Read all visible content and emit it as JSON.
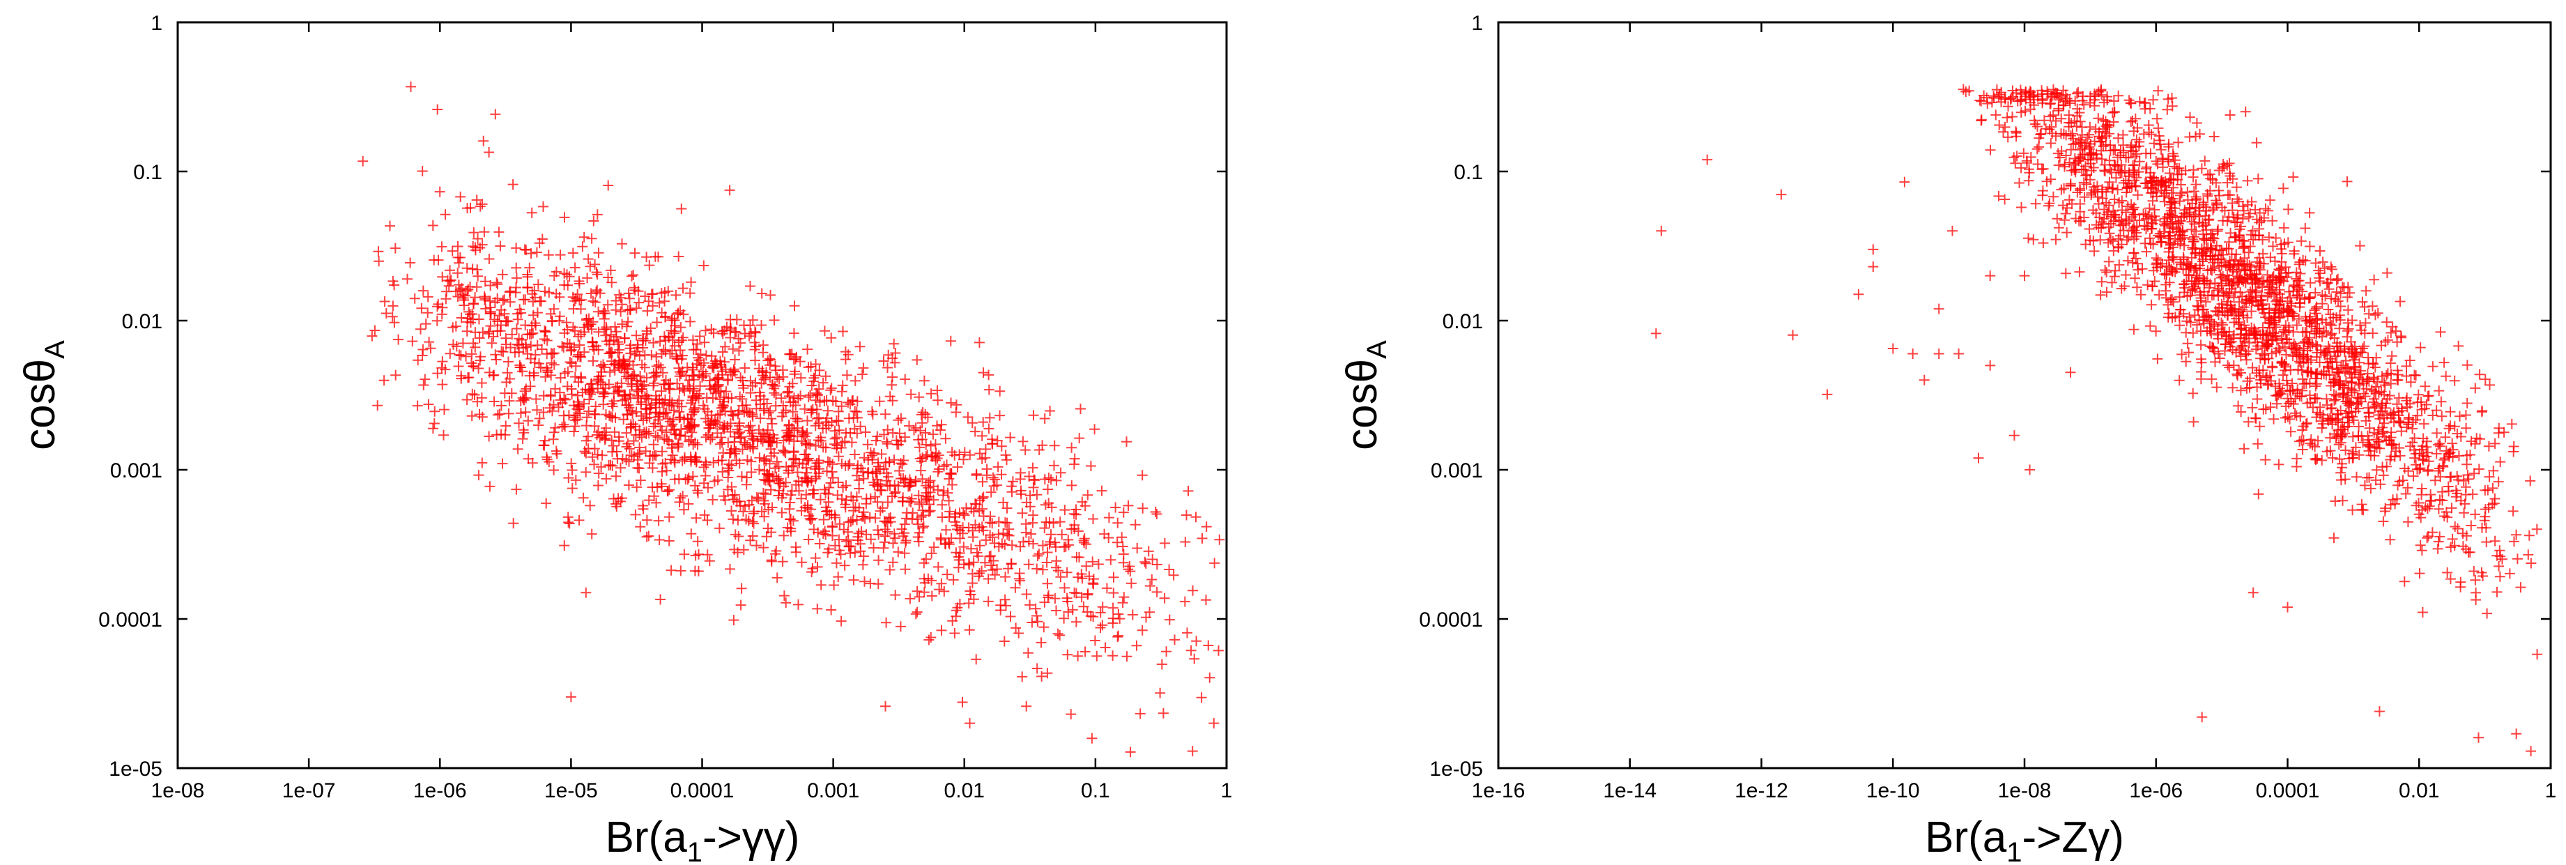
{
  "chart_data": [
    {
      "type": "scatter",
      "xlabel": "Br(a",
      "xlabel_sub": "1",
      "xlabel_tail": "->γγ)",
      "ylabel": "cosθ",
      "ylabel_sub": "A",
      "xscale": "log",
      "yscale": "log",
      "xlim": [
        1e-08,
        1
      ],
      "ylim": [
        1e-05,
        1
      ],
      "xticks": [
        1e-08,
        1e-07,
        1e-06,
        1e-05,
        0.0001,
        0.001,
        0.01,
        0.1,
        1
      ],
      "xtick_labels": [
        "1e-08",
        "1e-07",
        "1e-06",
        "1e-05",
        "0.0001",
        "0.001",
        "0.01",
        "0.1",
        "1"
      ],
      "yticks": [
        1e-05,
        0.0001,
        0.001,
        0.01,
        0.1,
        1
      ],
      "ytick_labels": [
        "1e-05",
        "0.0001",
        "0.001",
        "0.01",
        "0.1",
        "1"
      ],
      "marker": "+",
      "color": "#ff0000",
      "grid": false,
      "legend": null,
      "series": [
        {
          "name": "points",
          "cloud": {
            "count": 2400,
            "x_log10_range": [
              -6.6,
              0.0
            ],
            "x_log10_peak": -4.3,
            "y_log10_intercept": -3.95,
            "y_log10_slope": -0.33,
            "y_log10_sigma": 0.42,
            "y_log10_max": -0.45,
            "y_log10_min": -4.9,
            "seed": 11
          },
          "x": [
            6e-07,
            1.3e-05,
            0.0002,
            0.0025,
            0.011,
            0.065,
            0.55,
            0.8,
            1e-05,
            3e-06
          ],
          "y": [
            0.37,
            0.00015,
            0.00016,
            2.6e-05,
            2e-05,
            2.3e-05,
            1.3e-05,
            2e-05,
            3e-05,
            0.0011
          ]
        }
      ]
    },
    {
      "type": "scatter",
      "xlabel": "Br(a",
      "xlabel_sub": "1",
      "xlabel_tail": "->Zγ)",
      "ylabel": "cosθ",
      "ylabel_sub": "A",
      "xscale": "log",
      "yscale": "log",
      "xlim": [
        1e-16,
        1
      ],
      "ylim": [
        1e-05,
        1
      ],
      "xticks": [
        1e-16,
        1e-14,
        1e-12,
        1e-10,
        1e-08,
        1e-06,
        0.0001,
        0.01,
        1
      ],
      "xtick_labels": [
        "1e-16",
        "1e-14",
        "1e-12",
        "1e-10",
        "1e-08",
        "1e-06",
        "0.0001",
        "0.01",
        "1"
      ],
      "yticks": [
        1e-05,
        0.0001,
        0.001,
        0.01,
        0.1,
        1
      ],
      "ytick_labels": [
        "1e-05",
        "0.0001",
        "0.001",
        "0.01",
        "0.1",
        "1"
      ],
      "marker": "+",
      "color": "#ff0000",
      "grid": false,
      "legend": null,
      "series": [
        {
          "name": "points",
          "cloud": {
            "count": 2200,
            "x_log10_range": [
              -9.0,
              0.0
            ],
            "x_log10_peak": -4.8,
            "y_log10_intercept": -3.6,
            "y_log10_slope": -0.38,
            "y_log10_sigma": 0.38,
            "y_log10_max": -0.45,
            "y_log10_min": -4.9,
            "seed": 29
          },
          "x": [
            2.5e-14,
            3e-14,
            1.5e-13,
            2e-12,
            3e-12,
            1e-11,
            3e-11,
            5e-11,
            1e-10,
            1.5e-10,
            2e-10,
            5e-10,
            8e-10,
            1e-09,
            2e-09,
            3e-09,
            5e-09,
            7e-09,
            1.2e-08,
            2e-08,
            3e-08,
            5e-08,
            8e-08,
            5e-10,
            3e-10,
            5e-11,
            3e-09,
            1e-08,
            5e-06,
            3e-05,
            0.0001,
            0.08,
            0.5,
            0.3,
            0.0025
          ],
          "y": [
            0.0082,
            0.04,
            0.12,
            0.07,
            0.008,
            0.0032,
            0.015,
            0.03,
            0.0065,
            0.085,
            0.006,
            0.006,
            0.04,
            0.006,
            0.0012,
            0.02,
            0.065,
            0.0017,
            0.001,
            0.22,
            0.035,
            0.0045,
            0.28,
            0.012,
            0.004,
            0.023,
            0.005,
            0.02,
            2.2e-05,
            0.00015,
            0.00012,
            1.6e-05,
            1.3e-05,
            1.7e-05,
            2.4e-05
          ]
        }
      ]
    }
  ]
}
